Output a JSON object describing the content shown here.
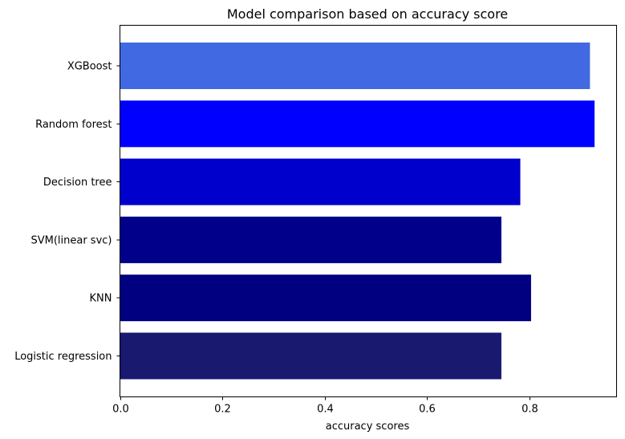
{
  "chart_data": {
    "type": "bar",
    "orientation": "horizontal",
    "title": "Model comparison based on accuracy score",
    "xlabel": "accuracy scores",
    "ylabel": "",
    "categories": [
      "Logistic regression",
      "KNN",
      "SVM(linear svc)",
      "Decision tree",
      "Random forest",
      "XGBoost"
    ],
    "values": [
      0.745,
      0.803,
      0.745,
      0.782,
      0.927,
      0.918
    ],
    "colors": [
      "#191970",
      "#000080",
      "#00008b",
      "#0000cd",
      "#0000ff",
      "#4169e1"
    ],
    "xlim": [
      0,
      0.97
    ],
    "xticks": [
      "0.0",
      "0.2",
      "0.4",
      "0.6",
      "0.8"
    ],
    "xtick_values": [
      0,
      0.2,
      0.4,
      0.6,
      0.8
    ],
    "grid": false,
    "legend": false
  }
}
